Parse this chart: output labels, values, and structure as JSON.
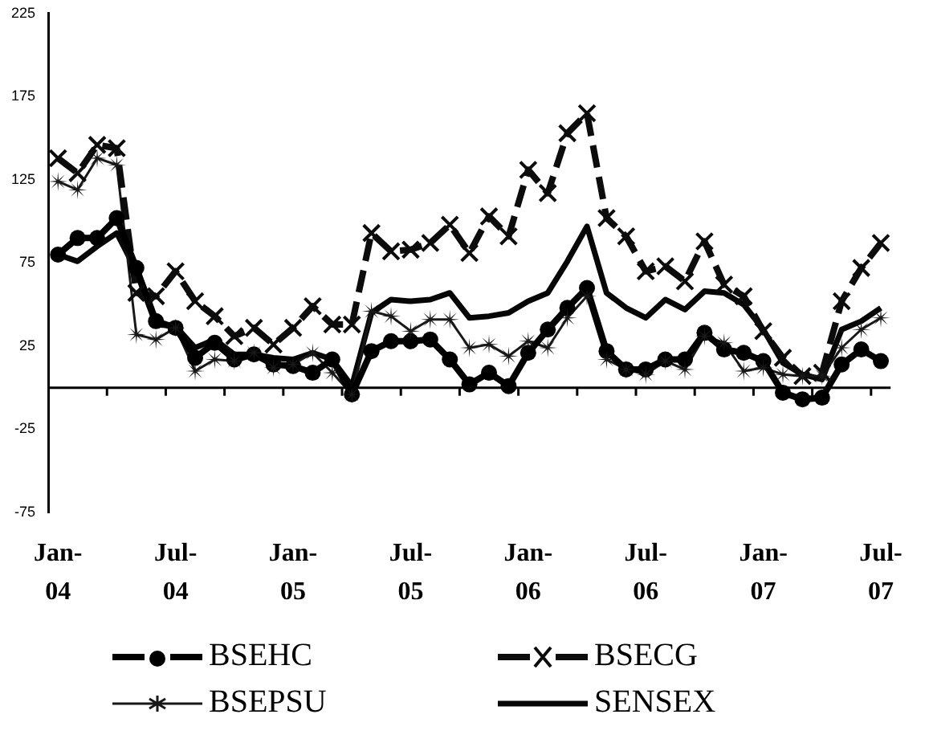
{
  "chart_data": {
    "type": "line",
    "categories": [
      "Jan-04",
      null,
      null,
      null,
      null,
      null,
      "Jul-04",
      null,
      null,
      null,
      null,
      null,
      "Jan-05",
      null,
      null,
      null,
      null,
      null,
      "Jul-05",
      null,
      null,
      null,
      null,
      null,
      "Jan-06",
      null,
      null,
      null,
      null,
      null,
      "Jul-06",
      null,
      null,
      null,
      null,
      null,
      "Jan-07",
      null,
      null,
      null,
      null,
      null,
      "Jul-07"
    ],
    "series": [
      {
        "name": "BSEHC",
        "color": "#000000",
        "marker": "circle",
        "line_style": "solid",
        "values": [
          80,
          90,
          90,
          102,
          72,
          40,
          36,
          18,
          27,
          17,
          20,
          14,
          13,
          9,
          17,
          -4,
          22,
          28,
          28,
          29,
          17,
          2,
          9,
          1,
          21,
          35,
          48,
          60,
          22,
          11,
          11,
          17,
          17,
          33,
          23,
          21,
          16,
          -3,
          -7,
          -6,
          14,
          23,
          16
        ]
      },
      {
        "name": "BSECG",
        "color": "#0c0c0c",
        "marker": "cross",
        "line_style": "dashed",
        "values": [
          138,
          129,
          146,
          144,
          57,
          55,
          70,
          52,
          43,
          31,
          36,
          26,
          36,
          49,
          38,
          38,
          93,
          82,
          83,
          87,
          98,
          81,
          103,
          91,
          131,
          117,
          153,
          165,
          102,
          91,
          70,
          73,
          64,
          88,
          62,
          55,
          34,
          18,
          7,
          9,
          52,
          72,
          87
        ]
      },
      {
        "name": "BSEPSU",
        "color": "#181818",
        "marker": "star",
        "line_style": "solid",
        "values": [
          124,
          119,
          138,
          134,
          32,
          29,
          36,
          10,
          17,
          16,
          21,
          12,
          14,
          21,
          9,
          -4,
          46,
          43,
          34,
          41,
          41,
          24,
          26,
          19,
          28,
          24,
          42,
          55,
          17,
          11,
          8,
          16,
          11,
          31,
          27,
          10,
          12,
          8,
          7,
          7,
          24,
          35,
          42
        ]
      },
      {
        "name": "SENSEX",
        "color": "#060606",
        "marker": "none",
        "line_style": "solid",
        "values": [
          80,
          76,
          85,
          93,
          70,
          38,
          37,
          24,
          29,
          20,
          20,
          18,
          17,
          21,
          17,
          1,
          45,
          53,
          52,
          53,
          57,
          42,
          43,
          45,
          52,
          57,
          76,
          97,
          57,
          48,
          42,
          53,
          47,
          58,
          57,
          50,
          35,
          15,
          8,
          5,
          35,
          40,
          48
        ]
      }
    ],
    "ylim": [
      -75,
      225
    ],
    "yticks": [
      -75,
      -25,
      25,
      75,
      125,
      175,
      225
    ],
    "grid": false,
    "legend": "bottom"
  }
}
